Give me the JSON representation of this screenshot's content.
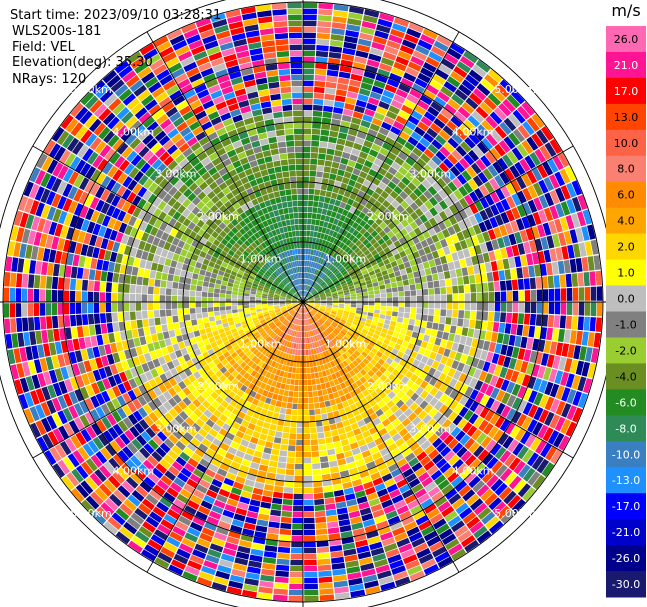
{
  "header": {
    "start_time": "Start time: 2023/09/10 03:28:31",
    "instrument": "WLS200s-181",
    "field": "Field: VEL",
    "elevation": "Elevation(deg): 35.30",
    "nrays": "NRays: 120"
  },
  "chart_data": {
    "type": "ppi",
    "field": "VEL",
    "units": "m/s",
    "range_rings_km": [
      1,
      2,
      3,
      4,
      5
    ],
    "range_ring_labels": [
      "1.00km",
      "2.00km",
      "3.00km",
      "4.00km",
      "5.00km"
    ],
    "max_range_km": 5.2,
    "azimuth_lines_deg": [
      0,
      30,
      60,
      90,
      120,
      150,
      180,
      210,
      240,
      270,
      300,
      330
    ],
    "nrays": 120,
    "colorbar": {
      "unit_label": "m/s",
      "ticks": [
        "26.0",
        "21.0",
        "17.0",
        "13.0",
        "10.0",
        "8.0",
        "6.0",
        "4.0",
        "2.0",
        "1.0",
        "0.0",
        "-1.0",
        "-2.0",
        "-4.0",
        "-6.0",
        "-8.0",
        "-10.0",
        "-13.0",
        "-17.0",
        "-21.0",
        "-26.0",
        "-30.0"
      ],
      "colors": [
        "#ff69b4",
        "#ff1493",
        "#ff0000",
        "#ff4500",
        "#ff6347",
        "#fa8072",
        "#ff8c00",
        "#ffa500",
        "#ffd700",
        "#ffff00",
        "#bebebe",
        "#808080",
        "#9acd32",
        "#6b8e23",
        "#228b22",
        "#2e8b57",
        "#3a7fc1",
        "#1e90ff",
        "#0000ff",
        "#0000cd",
        "#00008b",
        "#191970"
      ]
    },
    "field_pattern": {
      "description_values_mps": {
        "near_north_core": -8.0,
        "north_ring": -4.0,
        "near_south_core": 8.0,
        "south_ring": 4.0
      }
    }
  }
}
